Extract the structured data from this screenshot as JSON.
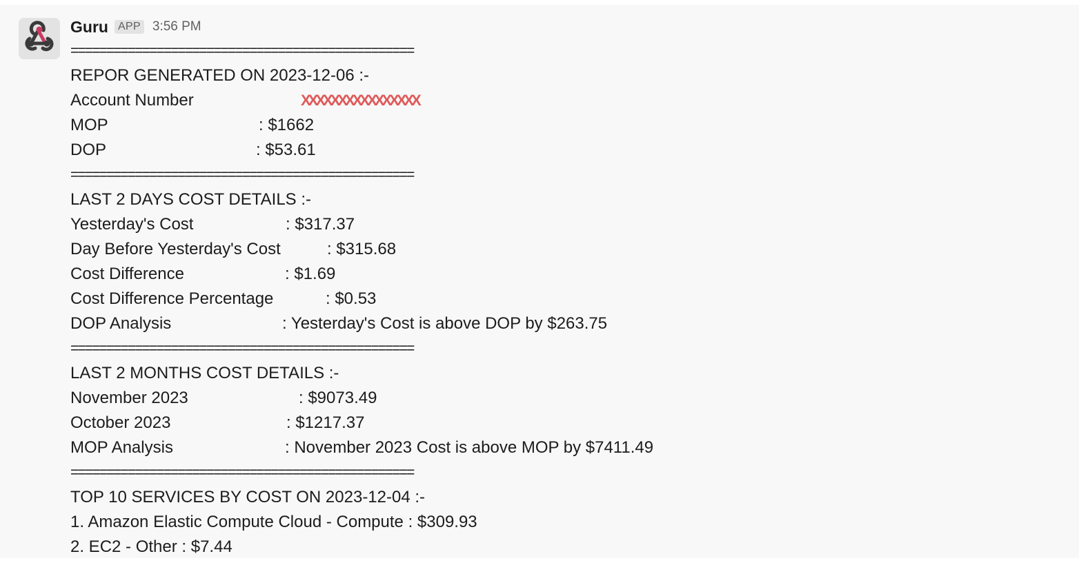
{
  "message": {
    "sender": "Guru",
    "badge": "APP",
    "time": "3:56 PM",
    "avatar_icon": "webhook-icon",
    "separator": "================================================",
    "report_title": "REPOR GENERATED ON 2023-12-06 :-",
    "account": {
      "label": "Account Number",
      "redacted": "XXXXXXXXXXXXXXXX"
    },
    "mop": {
      "label": "MOP",
      "value": ": $1662"
    },
    "dop": {
      "label": "DOP",
      "value": ": $53.61"
    },
    "days_title": "LAST 2 DAYS COST DETAILS :-",
    "yesterday": {
      "label": "Yesterday's Cost",
      "value": ": $317.37"
    },
    "day_before": {
      "label": "Day Before Yesterday's Cost",
      "value": ": $315.68"
    },
    "cost_diff": {
      "label": "Cost Difference",
      "value": ": $1.69"
    },
    "cost_diff_pct": {
      "label": "Cost Difference Percentage",
      "value": ": $0.53"
    },
    "dop_analysis": {
      "label": "DOP Analysis",
      "value": ": Yesterday's Cost is above DOP by $263.75"
    },
    "months_title": "LAST 2 MONTHS COST DETAILS :-",
    "november": {
      "label": "November 2023",
      "value": ": $9073.49"
    },
    "october": {
      "label": "October 2023",
      "value": ": $1217.37"
    },
    "mop_analysis": {
      "label": "MOP Analysis",
      "value": ": November 2023 Cost is above MOP by $7411.49"
    },
    "top_title": "TOP 10 SERVICES BY COST ON 2023-12-04 :-",
    "services": [
      "1. Amazon Elastic Compute Cloud - Compute : $309.93",
      "2. EC2 - Other : $7.44"
    ],
    "colors": {
      "background": "#f8f8f8",
      "text": "#1d1c1d",
      "muted": "#616061",
      "redaction": "#e05a5a",
      "logo": "#c73a63"
    }
  }
}
